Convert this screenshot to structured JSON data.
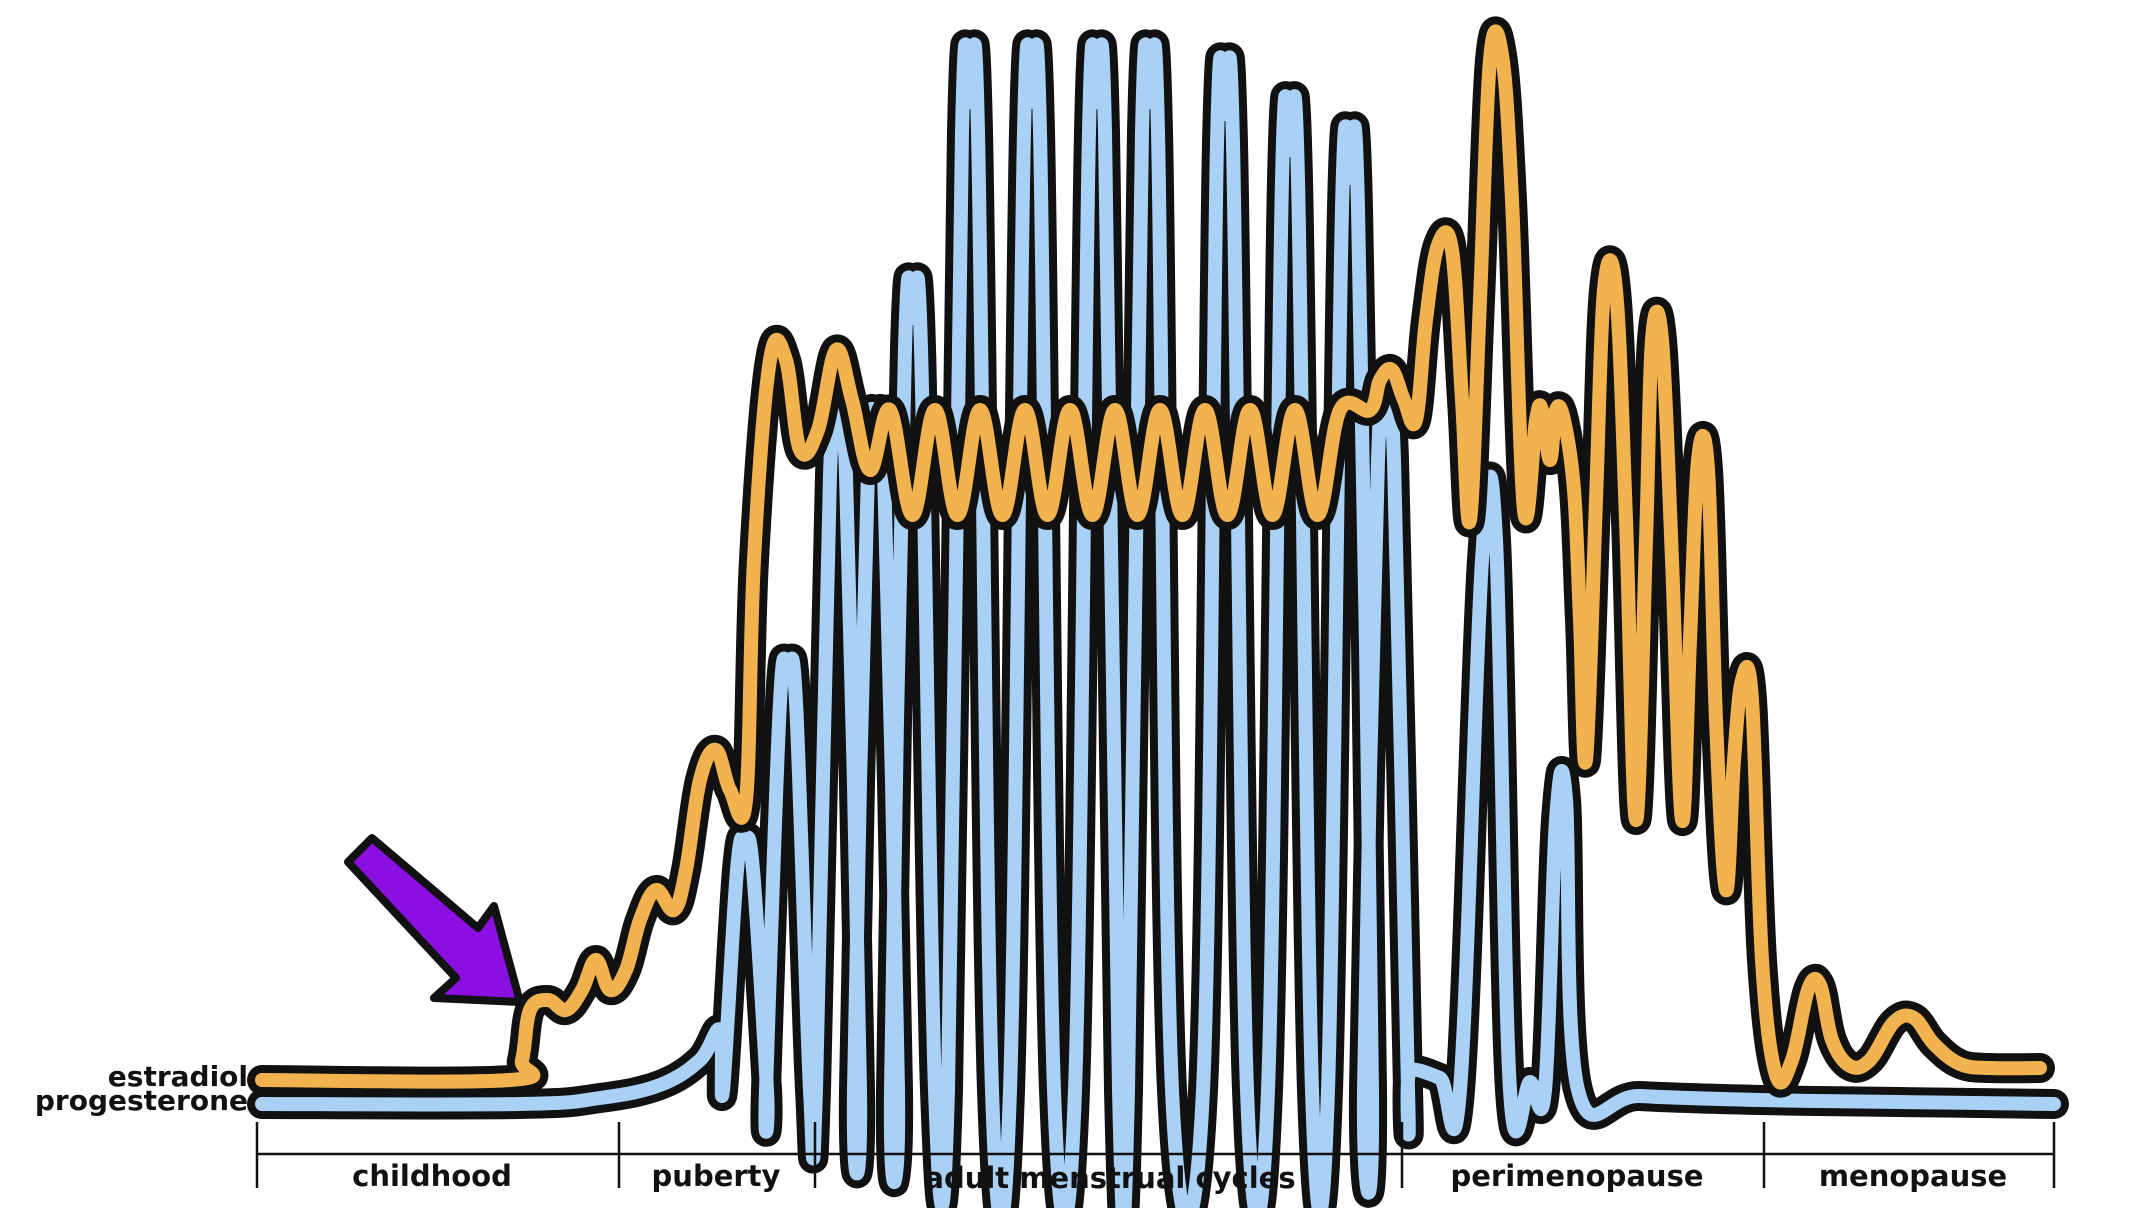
{
  "series": {
    "estradiol": {
      "label": "estradiol",
      "color": "#f2b34f"
    },
    "progesterone": {
      "label": "progesterone",
      "color": "#a9d0f5"
    }
  },
  "outline_color": "#111111",
  "arrow": {
    "color": "#8a0fe0",
    "icon": "arrow-down-right-icon"
  },
  "phases": [
    {
      "id": "childhood",
      "label": "childhood"
    },
    {
      "id": "puberty",
      "label": "puberty"
    },
    {
      "id": "adult",
      "label": "adult menstrual cycles"
    },
    {
      "id": "perimenopause",
      "label": "perimenopause"
    },
    {
      "id": "menopause",
      "label": "menopause"
    }
  ]
}
